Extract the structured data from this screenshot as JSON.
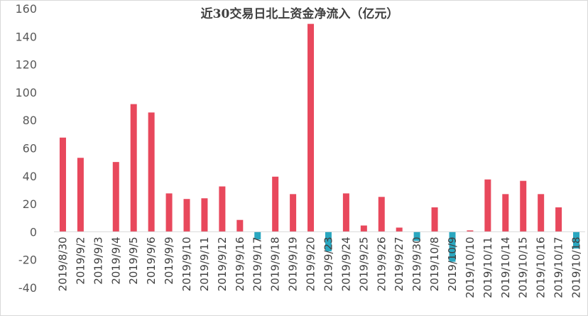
{
  "chart_data": {
    "type": "bar",
    "title": "近30交易日北上资金净流入（亿元）",
    "xlabel": "",
    "ylabel": "",
    "ylim": [
      -40,
      160
    ],
    "yticks": [
      -40,
      -20,
      0,
      20,
      40,
      60,
      80,
      100,
      120,
      140,
      160
    ],
    "ytick_labels": [
      "-40",
      "-20",
      "0",
      "20",
      "40",
      "60",
      "80",
      "100",
      "120",
      "140",
      "160"
    ],
    "grid": false,
    "legend": "none",
    "colors": {
      "positive": "#e8485c",
      "negative": "#2aa7c0"
    },
    "categories": [
      "2019/8/30",
      "2019/9/2",
      "2019/9/3",
      "2019/9/4",
      "2019/9/5",
      "2019/9/6",
      "2019/9/9",
      "2019/9/10",
      "2019/9/11",
      "2019/9/12",
      "2019/9/16",
      "2019/9/17",
      "2019/9/18",
      "2019/9/19",
      "2019/9/20",
      "2019/9/23",
      "2019/9/24",
      "2019/9/25",
      "2019/9/26",
      "2019/9/27",
      "2019/9/30",
      "2019/10/8",
      "2019/10/9",
      "2019/10/10",
      "2019/10/11",
      "2019/10/14",
      "2019/10/15",
      "2019/10/16",
      "2019/10/17",
      "2019/10/18"
    ],
    "values": [
      67.5,
      53,
      0,
      50,
      91.5,
      85.5,
      27.5,
      23.5,
      24,
      32.5,
      8.5,
      -5.5,
      39.5,
      27,
      149,
      -14,
      27.5,
      4.5,
      25,
      3,
      -6.5,
      17.5,
      -21.5,
      1,
      37.5,
      27,
      36.5,
      27,
      17.5,
      -12
    ]
  }
}
